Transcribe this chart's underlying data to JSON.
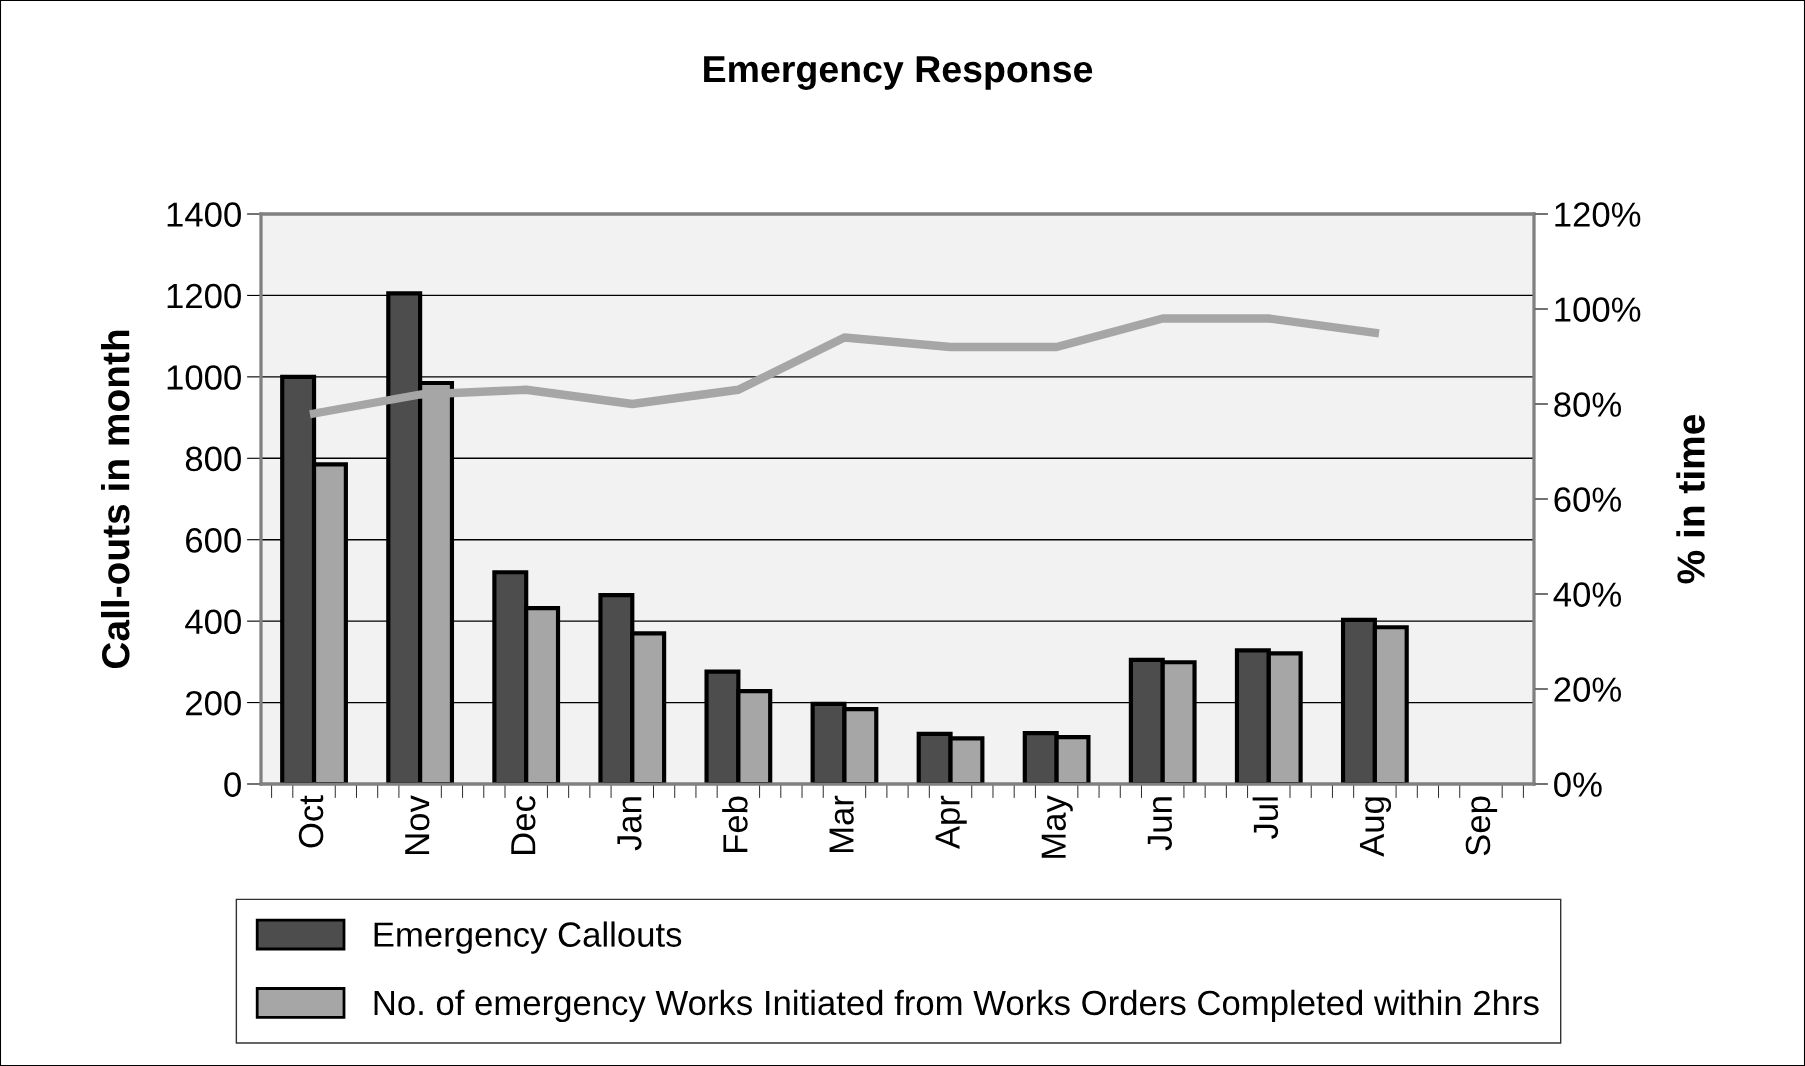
{
  "chart_data": {
    "type": "bar",
    "title": "Emergency Response",
    "ylabel": "Call-outs in month",
    "y2label": "% in time",
    "categories": [
      "Oct",
      "Nov",
      "Dec",
      "Jan",
      "Feb",
      "Mar",
      "Apr",
      "May",
      "Jun",
      "Jul",
      "Aug",
      "Sep"
    ],
    "series": [
      {
        "name": "Emergency Callouts",
        "color": "#4d4d4d",
        "values": [
          1000,
          1205,
          520,
          464,
          276,
          197,
          123,
          125,
          305,
          328,
          403,
          null
        ]
      },
      {
        "name": "No. of emergency Works Initiated from Works Orders Completed within 2hrs",
        "color": "#a6a6a6",
        "values": [
          785,
          985,
          432,
          370,
          228,
          184,
          112,
          115,
          299,
          321,
          385,
          null
        ]
      },
      {
        "type": "line",
        "axis": "y2",
        "color": "#a6a6a6",
        "values": [
          78,
          82,
          83,
          80,
          83,
          94,
          92,
          92,
          98,
          98,
          95,
          null
        ]
      }
    ],
    "ylim": [
      0,
      1400
    ],
    "yticks": [
      0,
      200,
      400,
      600,
      800,
      1000,
      1200,
      1400
    ],
    "y2lim": [
      0,
      120
    ],
    "y2ticks": [
      {
        "value": 0,
        "label": "0%"
      },
      {
        "value": 20,
        "label": "20%"
      },
      {
        "value": 40,
        "label": "40%"
      },
      {
        "value": 60,
        "label": "60%"
      },
      {
        "value": 80,
        "label": "80%"
      },
      {
        "value": 100,
        "label": "100%"
      },
      {
        "value": 120,
        "label": "120%"
      }
    ],
    "grid": "y",
    "legend": "bottom"
  }
}
